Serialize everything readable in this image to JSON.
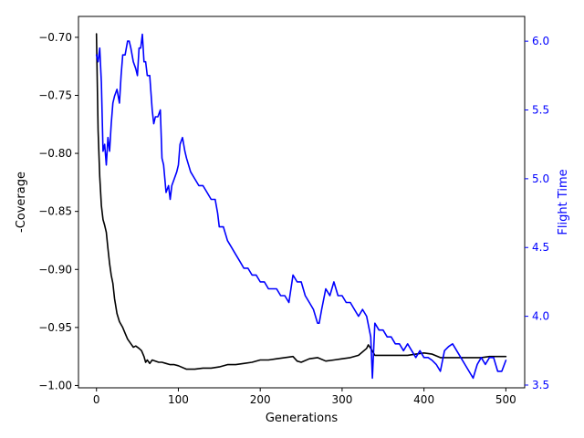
{
  "chart_data": {
    "type": "line",
    "title": "",
    "xlabel": "Generations",
    "ylabel_left": "-Coverage",
    "ylabel_right": "Flight Time",
    "xlim": [
      -22,
      523
    ],
    "ylim_left": [
      -1.002,
      -0.682
    ],
    "ylim_right": [
      3.48,
      6.18
    ],
    "xticks": [
      0,
      100,
      200,
      300,
      400,
      500
    ],
    "xtick_labels": [
      "0",
      "100",
      "200",
      "300",
      "400",
      "500"
    ],
    "yticks_left": [
      -1.0,
      -0.95,
      -0.9,
      -0.85,
      -0.8,
      -0.75,
      -0.7
    ],
    "ytick_labels_left": [
      "−1.00",
      "−0.95",
      "−0.90",
      "−0.85",
      "−0.80",
      "−0.75",
      "−0.70"
    ],
    "yticks_right": [
      3.5,
      4.0,
      4.5,
      5.0,
      5.5,
      6.0
    ],
    "ytick_labels_right": [
      "3.5",
      "4.0",
      "4.5",
      "5.0",
      "5.5",
      "6.0"
    ],
    "grid": false,
    "legend": false,
    "colors": {
      "left_axis": "#000000",
      "right_axis": "#0000ff",
      "series_coverage": "#000000",
      "series_flight_time": "#0000ff"
    },
    "series": [
      {
        "axis": "left",
        "color": "#000000",
        "x": [
          0,
          2,
          4,
          6,
          8,
          10,
          12,
          14,
          16,
          18,
          20,
          22,
          25,
          28,
          32,
          35,
          38,
          42,
          45,
          48,
          52,
          55,
          58,
          60,
          62,
          65,
          68,
          72,
          76,
          80,
          85,
          90,
          95,
          100,
          110,
          120,
          130,
          140,
          150,
          160,
          170,
          180,
          190,
          200,
          210,
          220,
          230,
          240,
          245,
          250,
          260,
          270,
          280,
          290,
          300,
          310,
          320,
          330,
          332,
          335,
          340,
          350,
          360,
          370,
          380,
          390,
          400,
          410,
          420,
          430,
          440,
          450,
          460,
          470,
          480,
          490,
          500
        ],
        "y": [
          -0.697,
          -0.78,
          -0.82,
          -0.845,
          -0.857,
          -0.862,
          -0.868,
          -0.882,
          -0.895,
          -0.905,
          -0.912,
          -0.925,
          -0.938,
          -0.945,
          -0.95,
          -0.955,
          -0.96,
          -0.964,
          -0.967,
          -0.966,
          -0.968,
          -0.97,
          -0.975,
          -0.98,
          -0.978,
          -0.981,
          -0.978,
          -0.979,
          -0.98,
          -0.98,
          -0.981,
          -0.982,
          -0.982,
          -0.983,
          -0.986,
          -0.986,
          -0.985,
          -0.985,
          -0.984,
          -0.982,
          -0.982,
          -0.981,
          -0.98,
          -0.978,
          -0.978,
          -0.977,
          -0.976,
          -0.975,
          -0.979,
          -0.98,
          -0.977,
          -0.976,
          -0.979,
          -0.978,
          -0.977,
          -0.976,
          -0.974,
          -0.968,
          -0.965,
          -0.968,
          -0.974,
          -0.974,
          -0.974,
          -0.974,
          -0.974,
          -0.973,
          -0.972,
          -0.973,
          -0.976,
          -0.976,
          -0.976,
          -0.976,
          -0.976,
          -0.976,
          -0.975,
          -0.975,
          -0.975
        ]
      },
      {
        "axis": "right",
        "color": "#0000ff",
        "x": [
          0,
          2,
          4,
          6,
          8,
          10,
          12,
          14,
          16,
          18,
          20,
          22,
          25,
          28,
          30,
          32,
          35,
          38,
          40,
          42,
          45,
          48,
          50,
          52,
          54,
          56,
          58,
          60,
          62,
          65,
          68,
          70,
          72,
          75,
          78,
          80,
          82,
          85,
          88,
          90,
          92,
          95,
          98,
          100,
          102,
          105,
          108,
          110,
          115,
          120,
          125,
          130,
          135,
          140,
          145,
          148,
          150,
          155,
          160,
          165,
          170,
          175,
          180,
          185,
          190,
          195,
          200,
          205,
          210,
          215,
          220,
          225,
          230,
          235,
          240,
          245,
          250,
          255,
          260,
          265,
          270,
          272,
          275,
          280,
          285,
          290,
          295,
          300,
          305,
          310,
          315,
          320,
          325,
          330,
          335,
          337,
          340,
          345,
          350,
          355,
          360,
          365,
          370,
          375,
          380,
          385,
          390,
          395,
          400,
          405,
          410,
          415,
          420,
          425,
          430,
          435,
          440,
          445,
          450,
          455,
          460,
          465,
          470,
          475,
          480,
          485,
          490,
          495,
          500
        ],
        "y": [
          5.9,
          5.85,
          5.95,
          5.7,
          5.2,
          5.25,
          5.1,
          5.3,
          5.2,
          5.4,
          5.55,
          5.6,
          5.65,
          5.55,
          5.75,
          5.9,
          5.9,
          6.0,
          6.0,
          5.95,
          5.85,
          5.8,
          5.75,
          5.95,
          5.95,
          6.05,
          5.85,
          5.85,
          5.75,
          5.75,
          5.5,
          5.4,
          5.45,
          5.45,
          5.5,
          5.15,
          5.1,
          4.9,
          4.95,
          4.85,
          4.95,
          5.0,
          5.05,
          5.1,
          5.25,
          5.3,
          5.2,
          5.15,
          5.05,
          5.0,
          4.95,
          4.95,
          4.9,
          4.85,
          4.85,
          4.75,
          4.65,
          4.65,
          4.55,
          4.5,
          4.45,
          4.4,
          4.35,
          4.35,
          4.3,
          4.3,
          4.25,
          4.25,
          4.2,
          4.2,
          4.2,
          4.15,
          4.15,
          4.1,
          4.3,
          4.25,
          4.25,
          4.15,
          4.1,
          4.05,
          3.95,
          3.95,
          4.05,
          4.2,
          4.15,
          4.25,
          4.15,
          4.15,
          4.1,
          4.1,
          4.05,
          4.0,
          4.05,
          4.0,
          3.85,
          3.55,
          3.95,
          3.9,
          3.9,
          3.85,
          3.85,
          3.8,
          3.8,
          3.75,
          3.8,
          3.75,
          3.7,
          3.75,
          3.7,
          3.7,
          3.68,
          3.65,
          3.6,
          3.75,
          3.78,
          3.8,
          3.75,
          3.7,
          3.65,
          3.6,
          3.55,
          3.65,
          3.7,
          3.65,
          3.7,
          3.7,
          3.6,
          3.6,
          3.68
        ]
      }
    ]
  }
}
